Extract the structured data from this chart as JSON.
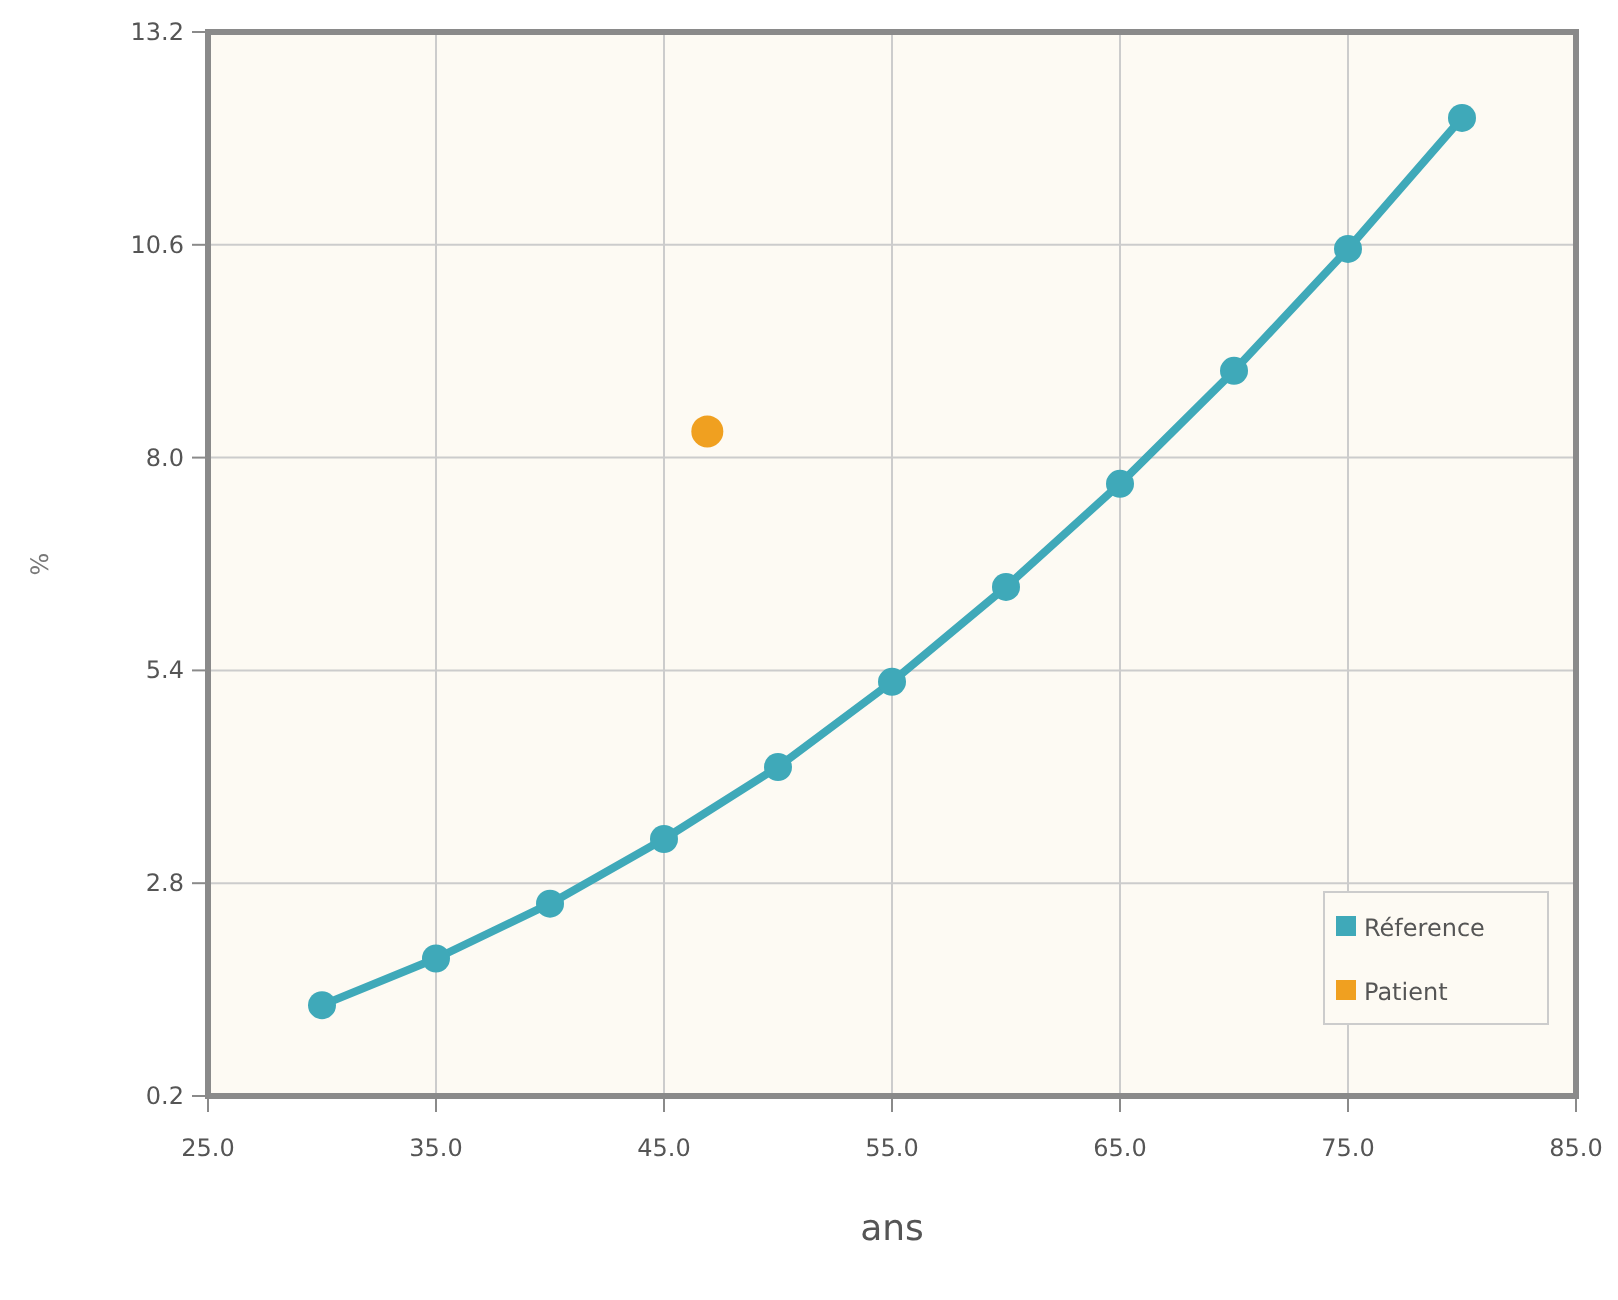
{
  "chart_data": {
    "type": "line",
    "xlabel": "ans",
    "ylabel": "%",
    "xlim": [
      25,
      85
    ],
    "xticks": [
      {
        "value": 25,
        "label": "25.0"
      },
      {
        "value": 35,
        "label": "35.0"
      },
      {
        "value": 45,
        "label": "45.0"
      },
      {
        "value": 55,
        "label": "55.0"
      },
      {
        "value": 65,
        "label": "65.0"
      },
      {
        "value": 75,
        "label": "75.0"
      },
      {
        "value": 85,
        "label": "85.0"
      }
    ],
    "ylim": [
      0.2,
      13.2
    ],
    "yticks": [
      0.2,
      2.8,
      5.4,
      {
        "value": 8,
        "label": "8.0"
      },
      10.6,
      13.2
    ],
    "grid": true,
    "legend": "bottom right",
    "marker": "circle",
    "line_style": "solid",
    "series": [
      {
        "name": "Réference",
        "color": "#3fa9b9",
        "x": [
          30,
          35,
          40,
          45,
          50,
          55,
          60,
          65,
          70,
          75,
          80
        ],
        "values": [
          1.31,
          1.88,
          2.55,
          3.34,
          4.22,
          5.26,
          6.42,
          7.68,
          9.06,
          10.55,
          12.15
        ]
      },
      {
        "name": "Patient",
        "color": "#f0a020",
        "type": "scatter",
        "x": [
          46.9
        ],
        "values": [
          8.32
        ]
      }
    ]
  }
}
